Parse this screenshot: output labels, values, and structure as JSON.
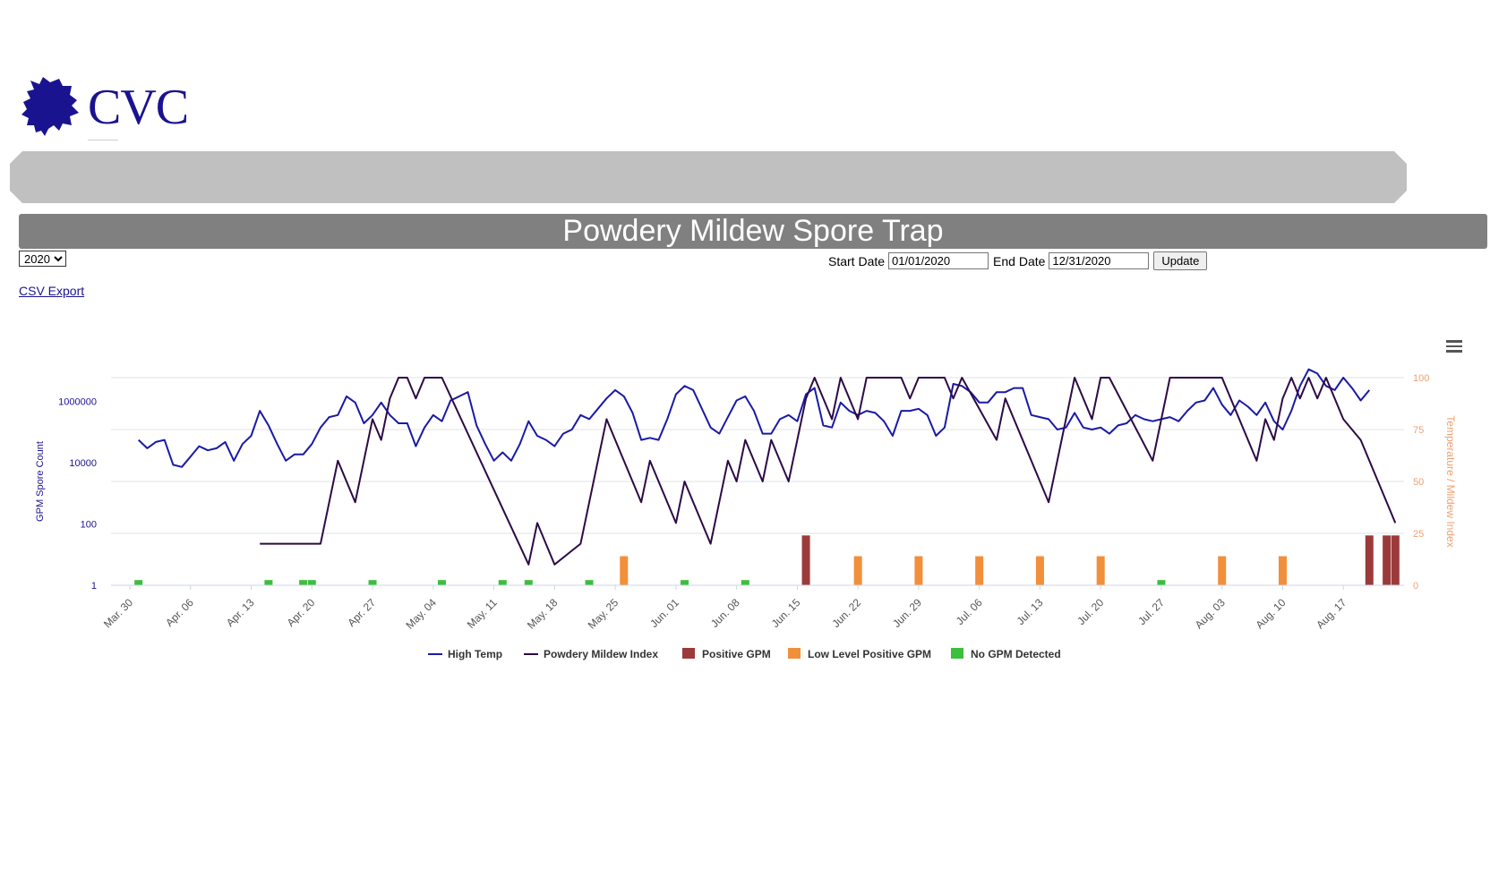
{
  "header": {
    "logo_text": "CVC",
    "logo_icon": "grape-leaf-icon"
  },
  "page_title": "Powdery Mildew Spore Trap",
  "controls": {
    "year_options": [
      "2020"
    ],
    "year_selected": "2020",
    "start_label": "Start Date",
    "start_value": "01/01/2020",
    "end_label": "End Date",
    "end_value": "12/31/2020",
    "update_label": "Update",
    "csv_label": "CSV Export",
    "menu_icon": "hamburger-menu-icon"
  },
  "colors": {
    "high_temp": "#1a1aa6",
    "mildew": "#2d0a45",
    "positive": "#9c3a3a",
    "low_positive": "#f28f3b",
    "none": "#3cbf3c",
    "right_axis": "#f0a070",
    "left_axis": "#1a1390"
  },
  "chart_data": {
    "type": "bar+line",
    "x_start": "2020-03-30",
    "x_end": "2020-08-24",
    "x_ticks": [
      "Mar. 30",
      "Apr. 06",
      "Apr. 13",
      "Apr. 20",
      "Apr. 27",
      "May. 04",
      "May. 11",
      "May. 18",
      "May. 25",
      "Jun. 01",
      "Jun. 08",
      "Jun. 15",
      "Jun. 22",
      "Jun. 29",
      "Jul. 06",
      "Jul. 13",
      "Jul. 20",
      "Jul. 27",
      "Aug. 03",
      "Aug. 10",
      "Aug. 17"
    ],
    "left_axis": {
      "label": "GPM Spore Count",
      "scale": "log",
      "ticks": [
        "1",
        "100",
        "10000",
        "1000000"
      ]
    },
    "right_axis": {
      "label": "Temperature / Mildew Index",
      "ticks": [
        "0",
        "25",
        "50",
        "75",
        "100"
      ],
      "range": [
        0,
        100
      ]
    },
    "grid": true,
    "legend_position": "bottom",
    "legend": [
      "High Temp",
      "Powdery Mildew Index",
      "Positive GPM",
      "Low Level Positive GPM",
      "No GPM Detected"
    ],
    "series": [
      {
        "name": "High Temp",
        "axis": "right",
        "points": [
          [
            "2020-03-31",
            70
          ],
          [
            "2020-04-01",
            66
          ],
          [
            "2020-04-02",
            69
          ],
          [
            "2020-04-03",
            70
          ],
          [
            "2020-04-04",
            58
          ],
          [
            "2020-04-05",
            57
          ],
          [
            "2020-04-06",
            62
          ],
          [
            "2020-04-07",
            67
          ],
          [
            "2020-04-08",
            65
          ],
          [
            "2020-04-09",
            66
          ],
          [
            "2020-04-10",
            69
          ],
          [
            "2020-04-11",
            60
          ],
          [
            "2020-04-12",
            68
          ],
          [
            "2020-04-13",
            72
          ],
          [
            "2020-04-14",
            84
          ],
          [
            "2020-04-15",
            77
          ],
          [
            "2020-04-16",
            68
          ],
          [
            "2020-04-17",
            60
          ],
          [
            "2020-04-18",
            63
          ],
          [
            "2020-04-19",
            63
          ],
          [
            "2020-04-20",
            68
          ],
          [
            "2020-04-21",
            76
          ],
          [
            "2020-04-22",
            81
          ],
          [
            "2020-04-23",
            82
          ],
          [
            "2020-04-24",
            91
          ],
          [
            "2020-04-25",
            88
          ],
          [
            "2020-04-26",
            78
          ],
          [
            "2020-04-27",
            82
          ],
          [
            "2020-04-28",
            88
          ],
          [
            "2020-04-29",
            82
          ],
          [
            "2020-04-30",
            78
          ],
          [
            "2020-05-01",
            78
          ],
          [
            "2020-05-02",
            67
          ],
          [
            "2020-05-03",
            76
          ],
          [
            "2020-05-04",
            82
          ],
          [
            "2020-05-05",
            79
          ],
          [
            "2020-05-06",
            89
          ],
          [
            "2020-05-07",
            91
          ],
          [
            "2020-05-08",
            93
          ],
          [
            "2020-05-09",
            77
          ],
          [
            "2020-05-10",
            68
          ],
          [
            "2020-05-11",
            60
          ],
          [
            "2020-05-12",
            64
          ],
          [
            "2020-05-13",
            60
          ],
          [
            "2020-05-14",
            68
          ],
          [
            "2020-05-15",
            79
          ],
          [
            "2020-05-16",
            72
          ],
          [
            "2020-05-17",
            70
          ],
          [
            "2020-05-18",
            67
          ],
          [
            "2020-05-19",
            73
          ],
          [
            "2020-05-20",
            75
          ],
          [
            "2020-05-21",
            82
          ],
          [
            "2020-05-22",
            80
          ],
          [
            "2020-05-23",
            85
          ],
          [
            "2020-05-24",
            90
          ],
          [
            "2020-05-25",
            94
          ],
          [
            "2020-05-26",
            91
          ],
          [
            "2020-05-27",
            83
          ],
          [
            "2020-05-28",
            70
          ],
          [
            "2020-05-29",
            71
          ],
          [
            "2020-05-30",
            70
          ],
          [
            "2020-05-31",
            80
          ],
          [
            "2020-06-01",
            92
          ],
          [
            "2020-06-02",
            96
          ],
          [
            "2020-06-03",
            94
          ],
          [
            "2020-06-04",
            85
          ],
          [
            "2020-06-05",
            76
          ],
          [
            "2020-06-06",
            73
          ],
          [
            "2020-06-07",
            81
          ],
          [
            "2020-06-08",
            89
          ],
          [
            "2020-06-09",
            91
          ],
          [
            "2020-06-10",
            84
          ],
          [
            "2020-06-11",
            73
          ],
          [
            "2020-06-12",
            73
          ],
          [
            "2020-06-13",
            80
          ],
          [
            "2020-06-14",
            82
          ],
          [
            "2020-06-15",
            79
          ],
          [
            "2020-06-16",
            92
          ],
          [
            "2020-06-17",
            95
          ],
          [
            "2020-06-18",
            77
          ],
          [
            "2020-06-19",
            76
          ],
          [
            "2020-06-20",
            88
          ],
          [
            "2020-06-21",
            84
          ],
          [
            "2020-06-22",
            82
          ],
          [
            "2020-06-23",
            84
          ],
          [
            "2020-06-24",
            83
          ],
          [
            "2020-06-25",
            79
          ],
          [
            "2020-06-26",
            72
          ],
          [
            "2020-06-27",
            84
          ],
          [
            "2020-06-28",
            84
          ],
          [
            "2020-06-29",
            85
          ],
          [
            "2020-06-30",
            82
          ],
          [
            "2020-07-01",
            72
          ],
          [
            "2020-07-02",
            76
          ],
          [
            "2020-07-03",
            97
          ],
          [
            "2020-07-04",
            96
          ],
          [
            "2020-07-05",
            93
          ],
          [
            "2020-07-06",
            88
          ],
          [
            "2020-07-07",
            88
          ],
          [
            "2020-07-08",
            93
          ],
          [
            "2020-07-09",
            93
          ],
          [
            "2020-07-10",
            95
          ],
          [
            "2020-07-11",
            95
          ],
          [
            "2020-07-12",
            82
          ],
          [
            "2020-07-13",
            81
          ],
          [
            "2020-07-14",
            80
          ],
          [
            "2020-07-15",
            75
          ],
          [
            "2020-07-16",
            76
          ],
          [
            "2020-07-17",
            83
          ],
          [
            "2020-07-18",
            76
          ],
          [
            "2020-07-19",
            75
          ],
          [
            "2020-07-20",
            76
          ],
          [
            "2020-07-21",
            73
          ],
          [
            "2020-07-22",
            77
          ],
          [
            "2020-07-23",
            78
          ],
          [
            "2020-07-24",
            82
          ],
          [
            "2020-07-25",
            80
          ],
          [
            "2020-07-26",
            79
          ],
          [
            "2020-07-27",
            80
          ],
          [
            "2020-07-28",
            81
          ],
          [
            "2020-07-29",
            79
          ],
          [
            "2020-07-30",
            84
          ],
          [
            "2020-07-31",
            88
          ],
          [
            "2020-08-01",
            89
          ],
          [
            "2020-08-02",
            95
          ],
          [
            "2020-08-03",
            87
          ],
          [
            "2020-08-04",
            82
          ],
          [
            "2020-08-05",
            89
          ],
          [
            "2020-08-06",
            86
          ],
          [
            "2020-08-07",
            82
          ],
          [
            "2020-08-08",
            88
          ],
          [
            "2020-08-09",
            79
          ],
          [
            "2020-08-10",
            75
          ],
          [
            "2020-08-11",
            84
          ],
          [
            "2020-08-12",
            96
          ],
          [
            "2020-08-13",
            104
          ],
          [
            "2020-08-14",
            102
          ],
          [
            "2020-08-15",
            96
          ],
          [
            "2020-08-16",
            94
          ],
          [
            "2020-08-17",
            100
          ],
          [
            "2020-08-18",
            95
          ],
          [
            "2020-08-19",
            89
          ],
          [
            "2020-08-20",
            94
          ]
        ]
      },
      {
        "name": "Powdery Mildew Index",
        "axis": "right",
        "points": [
          [
            "2020-04-14",
            20
          ],
          [
            "2020-04-21",
            20
          ],
          [
            "2020-04-23",
            60
          ],
          [
            "2020-04-25",
            40
          ],
          [
            "2020-04-27",
            80
          ],
          [
            "2020-04-28",
            70
          ],
          [
            "2020-04-29",
            90
          ],
          [
            "2020-04-30",
            100
          ],
          [
            "2020-05-01",
            100
          ],
          [
            "2020-05-02",
            90
          ],
          [
            "2020-05-03",
            100
          ],
          [
            "2020-05-05",
            100
          ],
          [
            "2020-05-15",
            10
          ],
          [
            "2020-05-16",
            30
          ],
          [
            "2020-05-18",
            10
          ],
          [
            "2020-05-21",
            20
          ],
          [
            "2020-05-24",
            80
          ],
          [
            "2020-05-28",
            40
          ],
          [
            "2020-05-29",
            60
          ],
          [
            "2020-06-01",
            30
          ],
          [
            "2020-06-02",
            50
          ],
          [
            "2020-06-05",
            20
          ],
          [
            "2020-06-07",
            60
          ],
          [
            "2020-06-08",
            50
          ],
          [
            "2020-06-09",
            70
          ],
          [
            "2020-06-11",
            50
          ],
          [
            "2020-06-12",
            70
          ],
          [
            "2020-06-14",
            50
          ],
          [
            "2020-06-16",
            90
          ],
          [
            "2020-06-17",
            100
          ],
          [
            "2020-06-19",
            80
          ],
          [
            "2020-06-20",
            100
          ],
          [
            "2020-06-22",
            80
          ],
          [
            "2020-06-23",
            100
          ],
          [
            "2020-06-27",
            100
          ],
          [
            "2020-06-28",
            90
          ],
          [
            "2020-06-29",
            100
          ],
          [
            "2020-07-02",
            100
          ],
          [
            "2020-07-03",
            90
          ],
          [
            "2020-07-04",
            100
          ],
          [
            "2020-07-08",
            70
          ],
          [
            "2020-07-09",
            90
          ],
          [
            "2020-07-14",
            40
          ],
          [
            "2020-07-17",
            100
          ],
          [
            "2020-07-19",
            80
          ],
          [
            "2020-07-20",
            100
          ],
          [
            "2020-07-21",
            100
          ],
          [
            "2020-07-26",
            60
          ],
          [
            "2020-07-28",
            100
          ],
          [
            "2020-08-03",
            100
          ],
          [
            "2020-08-07",
            60
          ],
          [
            "2020-08-08",
            80
          ],
          [
            "2020-08-09",
            70
          ],
          [
            "2020-08-10",
            90
          ],
          [
            "2020-08-11",
            100
          ],
          [
            "2020-08-12",
            90
          ],
          [
            "2020-08-13",
            100
          ],
          [
            "2020-08-14",
            90
          ],
          [
            "2020-08-15",
            100
          ],
          [
            "2020-08-17",
            80
          ],
          [
            "2020-08-19",
            70
          ],
          [
            "2020-08-23",
            30
          ]
        ]
      },
      {
        "name": "Positive GPM",
        "type": "bar",
        "level": "positive",
        "dates": [
          "2020-06-16",
          "2020-08-20",
          "2020-08-22",
          "2020-08-23"
        ]
      },
      {
        "name": "Low Level Positive GPM",
        "type": "bar",
        "level": "low",
        "dates": [
          "2020-05-26",
          "2020-06-22",
          "2020-06-29",
          "2020-07-06",
          "2020-07-13",
          "2020-07-20",
          "2020-08-03",
          "2020-08-10"
        ]
      },
      {
        "name": "No GPM Detected",
        "type": "bar",
        "level": "none",
        "dates": [
          "2020-03-31",
          "2020-04-15",
          "2020-04-19",
          "2020-04-20",
          "2020-04-27",
          "2020-05-05",
          "2020-05-12",
          "2020-05-15",
          "2020-05-22",
          "2020-06-02",
          "2020-06-09",
          "2020-07-27"
        ]
      }
    ]
  }
}
